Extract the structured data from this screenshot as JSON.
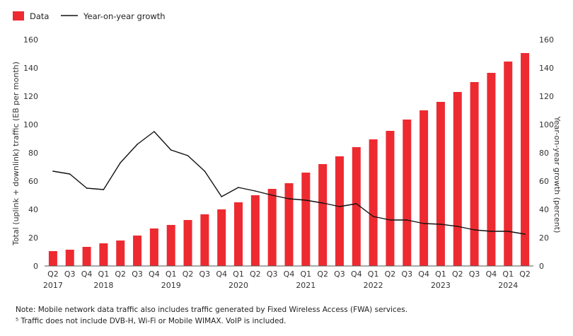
{
  "chart_data": {
    "type": "bar",
    "legend": {
      "bar_label": "Data",
      "line_label": "Year-on-year growth"
    },
    "ylabel_left": "Total (uplink + downlink) traffic (EB per month)",
    "ylabel_right": "Year-on-year growth (percent)",
    "ylim_left": [
      0,
      160
    ],
    "ylim_right": [
      0,
      160
    ],
    "yticks": [
      "0",
      "20",
      "40",
      "60",
      "80",
      "100",
      "120",
      "140",
      "160"
    ],
    "categories": [
      "Q2",
      "Q3",
      "Q4",
      "Q1",
      "Q2",
      "Q3",
      "Q4",
      "Q1",
      "Q2",
      "Q3",
      "Q4",
      "Q1",
      "Q2",
      "Q3",
      "Q4",
      "Q1",
      "Q2",
      "Q3",
      "Q4",
      "Q1",
      "Q2",
      "Q3",
      "Q4",
      "Q1",
      "Q2",
      "Q3",
      "Q4",
      "Q1",
      "Q2"
    ],
    "years": [
      {
        "label": "2017",
        "index": 0
      },
      {
        "label": "2018",
        "index": 3
      },
      {
        "label": "2019",
        "index": 7
      },
      {
        "label": "2020",
        "index": 11
      },
      {
        "label": "2021",
        "index": 15
      },
      {
        "label": "2022",
        "index": 19
      },
      {
        "label": "2023",
        "index": 23
      },
      {
        "label": "2024",
        "index": 27
      }
    ],
    "series": [
      {
        "name": "Data",
        "type": "bar",
        "axis": "left",
        "values": [
          10.5,
          11.5,
          13.5,
          16,
          18,
          21.5,
          26.5,
          29,
          32.5,
          36.5,
          40,
          45,
          50,
          54.5,
          58.5,
          66,
          72,
          77.5,
          84,
          89.5,
          95.5,
          103.5,
          110,
          116,
          123,
          130,
          136.5,
          144.5,
          150.5
        ]
      },
      {
        "name": "Year-on-year growth",
        "type": "line",
        "axis": "right",
        "values": [
          67,
          65,
          55,
          54,
          73,
          86,
          95,
          82,
          78,
          67,
          49,
          55.5,
          53,
          50,
          47.5,
          46.5,
          44.5,
          42,
          44,
          35,
          32.5,
          32.5,
          30,
          29.5,
          28,
          25.5,
          24.5,
          24.5,
          22.5
        ]
      }
    ],
    "colors": {
      "bar": "#ee2a31",
      "line": "#111111",
      "axis": "#555555"
    }
  },
  "notes": [
    "Note: Mobile network data traffic also includes traffic generated by Fixed Wireless Access (FWA) services.",
    "⁵ Traffic does not include DVB-H, Wi-Fi or Mobile WIMAX. VoIP is included."
  ]
}
